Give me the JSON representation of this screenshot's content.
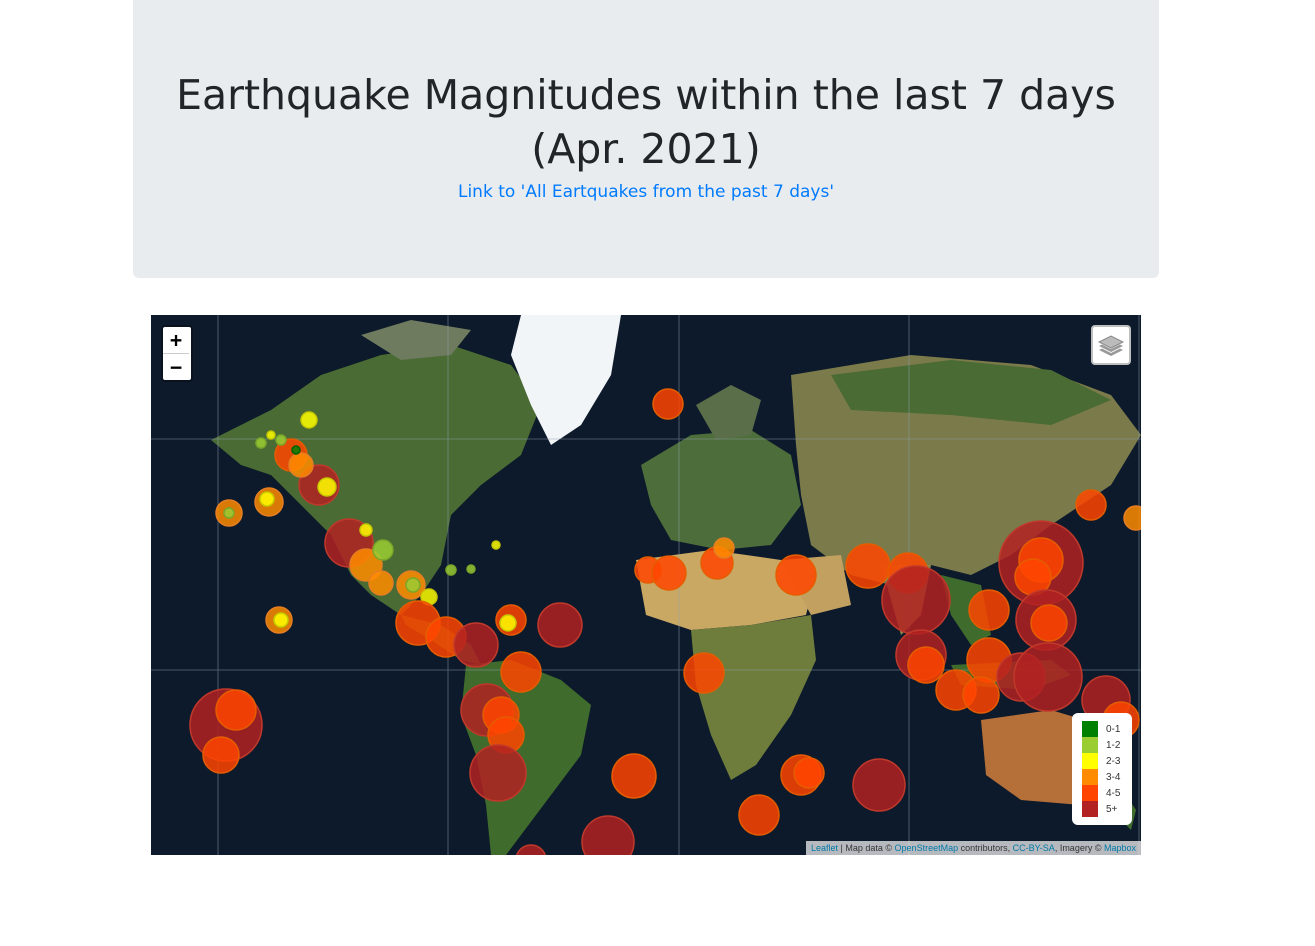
{
  "header": {
    "title": "Earthquake Magnitudes within the last 7 days (Apr. 2021)",
    "link_text": "Link to 'All Eartquakes from the past 7 days'"
  },
  "map": {
    "zoom_in": "+",
    "zoom_out": "−",
    "layers_icon": "layers-icon",
    "ocean_color": "#0d1a2b",
    "land_color": "#3f6b2c",
    "desert_color": "#c9a864",
    "ice_color": "#f2f5f7"
  },
  "legend": {
    "items": [
      {
        "label": "0-1",
        "color": "#008000"
      },
      {
        "label": "1-2",
        "color": "#9acd32"
      },
      {
        "label": "2-3",
        "color": "#ffff00"
      },
      {
        "label": "3-4",
        "color": "#ff8c00"
      },
      {
        "label": "4-5",
        "color": "#ff4500"
      },
      {
        "label": "5+",
        "color": "#b22222"
      }
    ]
  },
  "attribution": {
    "leaflet": "Leaflet",
    "sep": " | Map data © ",
    "osm": "OpenStreetMap",
    "contrib": " contributors, ",
    "license": "CC-BY-SA",
    "imagery": ", Imagery © ",
    "mapbox": "Mapbox"
  }
}
